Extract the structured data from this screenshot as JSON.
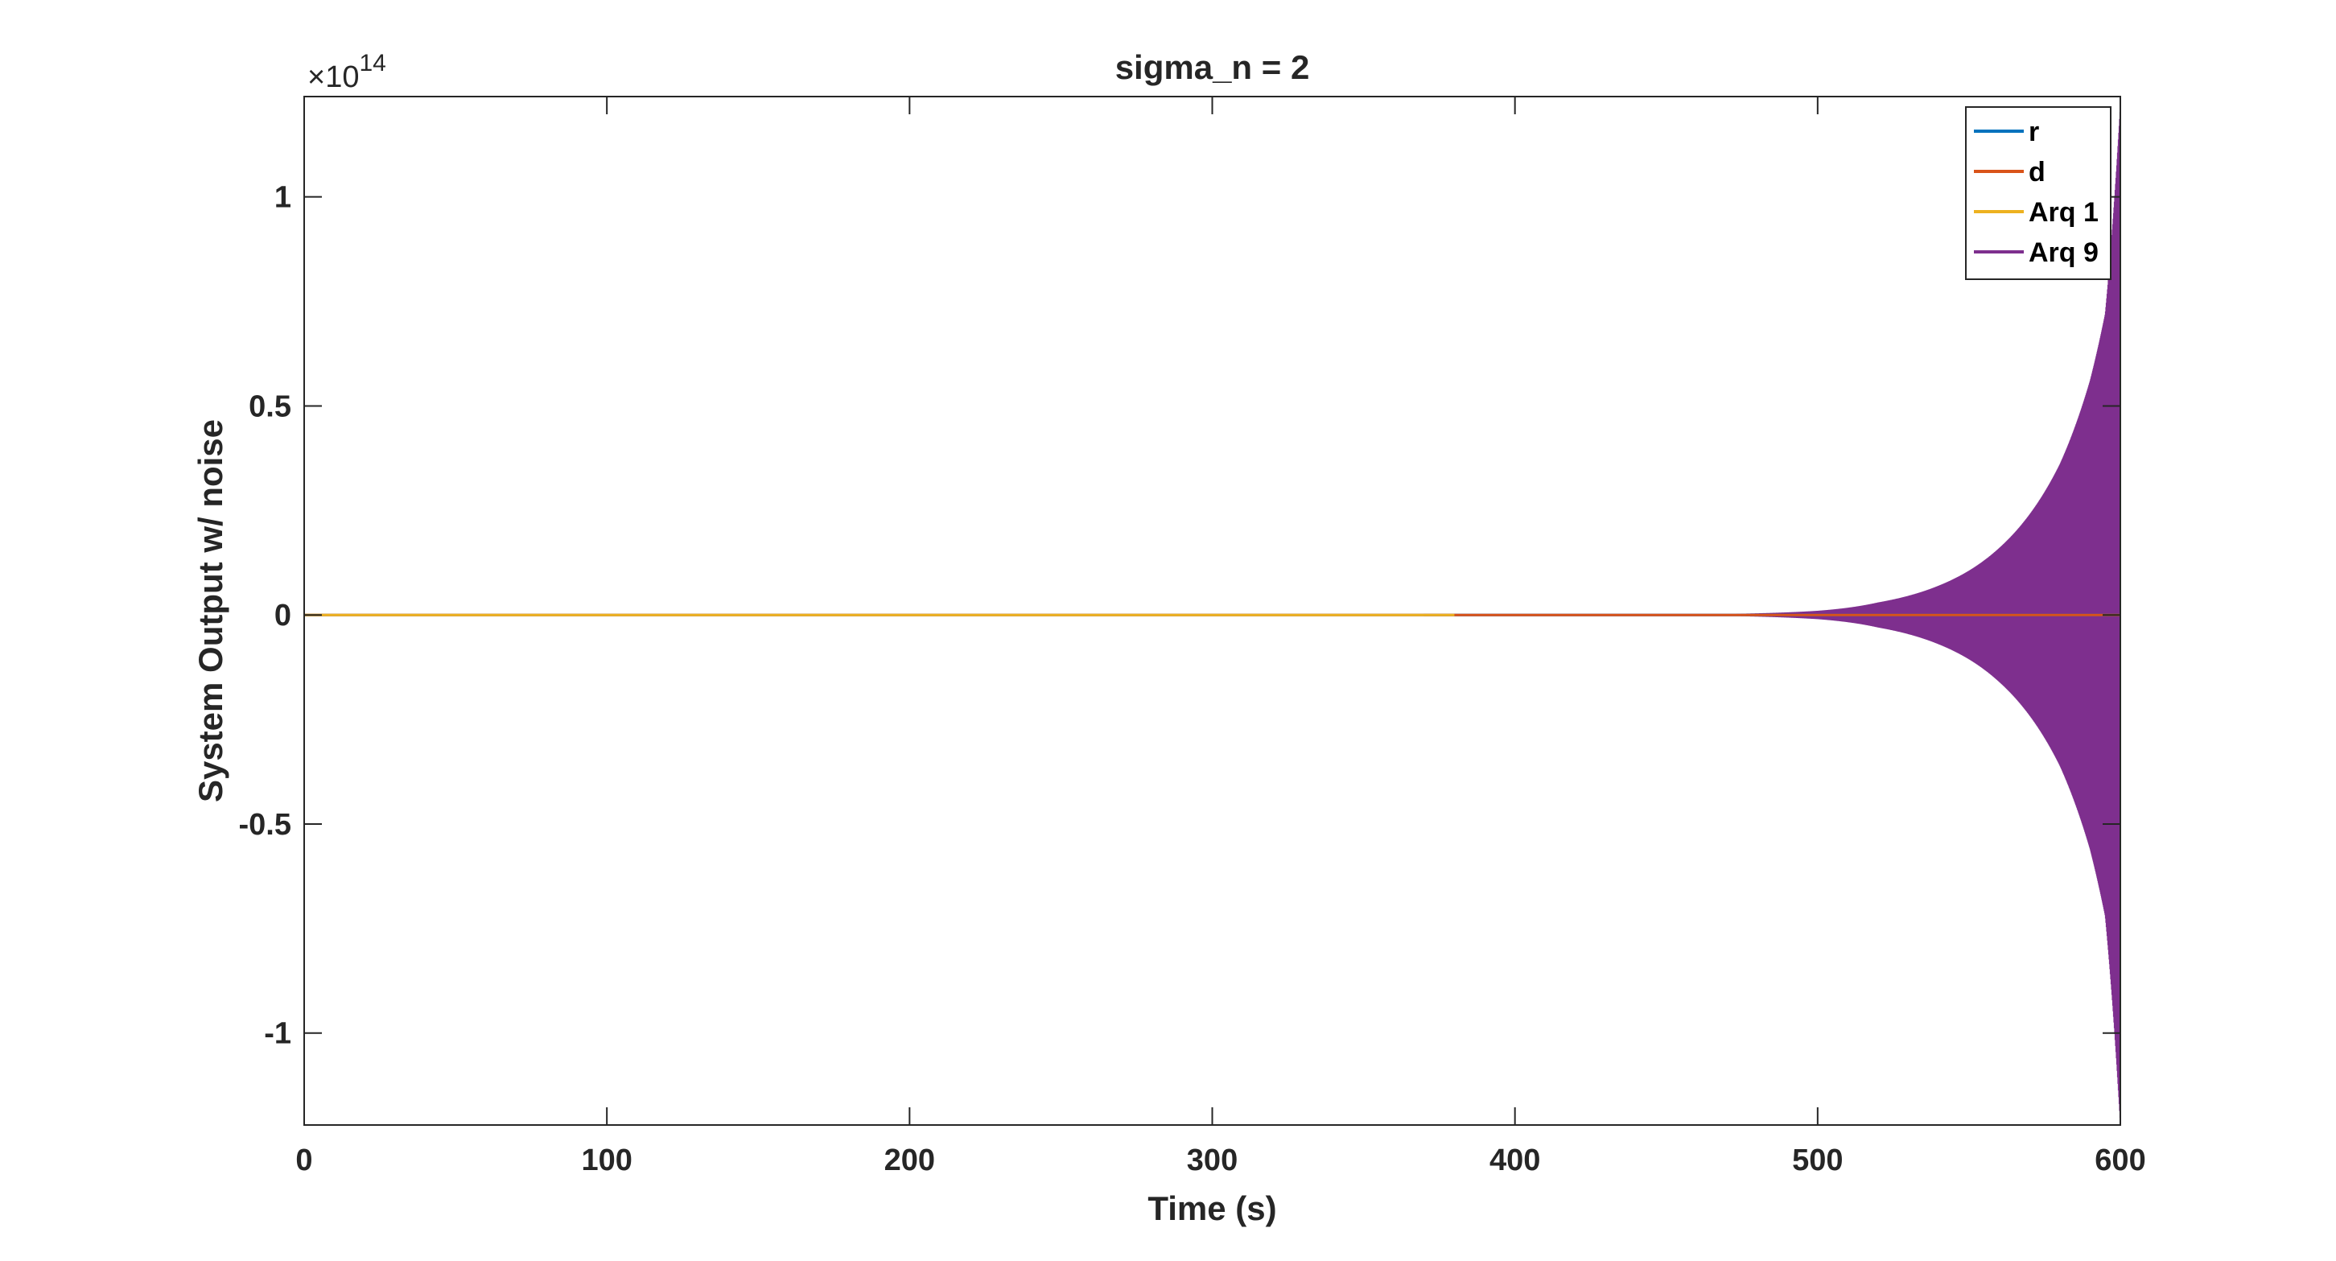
{
  "chart_data": {
    "type": "line",
    "title": "sigma_n = 2",
    "xlabel": "Time (s)",
    "ylabel": "System Output w/ noise",
    "xlim": [
      0,
      600
    ],
    "ylim": [
      -1.22,
      1.24
    ],
    "y_exponent_label": "×10",
    "y_exponent_power": "14",
    "xticks": [
      0,
      100,
      200,
      300,
      400,
      500,
      600
    ],
    "xtick_labels": [
      "0",
      "100",
      "200",
      "300",
      "400",
      "500",
      "600"
    ],
    "yticks": [
      -1,
      -0.5,
      0,
      0.5,
      1
    ],
    "ytick_labels": [
      "-1",
      "-0.5",
      "0",
      "0.5",
      "1"
    ],
    "grid": false,
    "box": true,
    "legend_position": "top-right",
    "series": [
      {
        "name": "r",
        "color": "#0072BD",
        "behavior": "near zero",
        "x_range": [
          0,
          600
        ],
        "values": [
          0,
          0
        ]
      },
      {
        "name": "d",
        "color": "#D95319",
        "behavior": "near zero",
        "x_range": [
          0,
          600
        ],
        "values": [
          0,
          0
        ]
      },
      {
        "name": "Arq 1",
        "color": "#EDB120",
        "behavior": "near zero",
        "x_range": [
          0,
          380
        ],
        "values": [
          0,
          0
        ]
      },
      {
        "name": "Arq 9",
        "color": "#7E2F8E",
        "behavior": "oscillating, exponentially growing envelope",
        "x_range": [
          370,
          600
        ],
        "envelope_x": [
          370,
          450,
          500,
          520,
          540,
          560,
          570,
          580,
          590,
          595,
          600
        ],
        "envelope_y": [
          0.0,
          0.001,
          0.01,
          0.03,
          0.07,
          0.16,
          0.24,
          0.36,
          0.56,
          0.72,
          1.22
        ]
      }
    ]
  }
}
